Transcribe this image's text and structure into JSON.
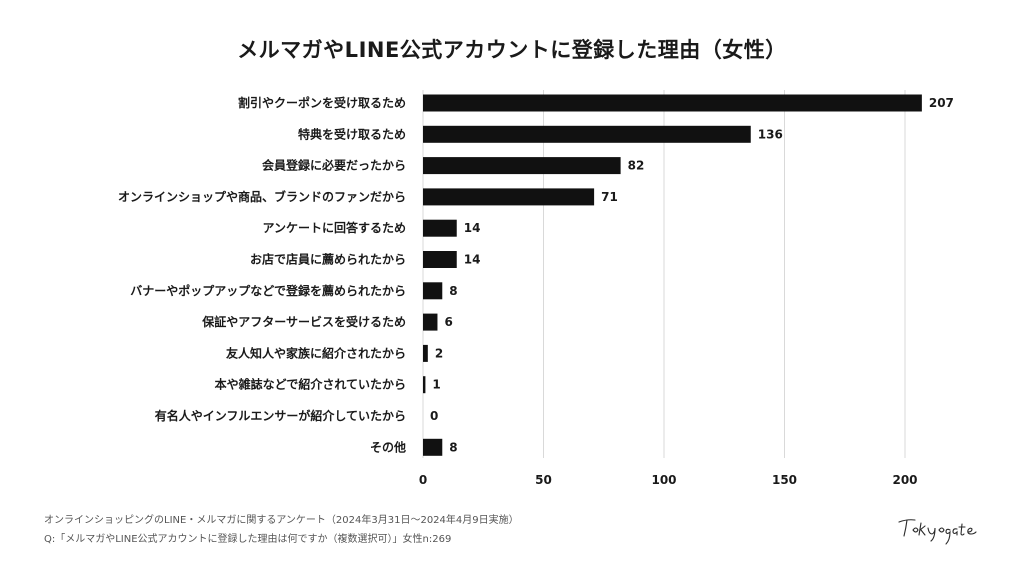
{
  "title": "メルマガやLINE公式アカウントに登録した理由（女性）",
  "footer": {
    "line1": "オンラインショッピングのLINE・メルマガに関するアンケート（2024年3月31日〜2024年4月9日実施）",
    "line2": "Q:「メルマガやLINE公式アカウントに登録した理由は何ですか（複数選択可）」女性n:269"
  },
  "logo_text": "Tokyo gate",
  "colors": {
    "bar": "#111111",
    "grid": "#d9d9d9",
    "text": "#1a1a1a"
  },
  "chart_data": {
    "type": "bar",
    "orientation": "horizontal",
    "categories": [
      "割引やクーポンを受け取るため",
      "特典を受け取るため",
      "会員登録に必要だったから",
      "オンラインショップや商品、ブランドのファンだから",
      "アンケートに回答するため",
      "お店で店員に薦められたから",
      "バナーやポップアップなどで登録を薦められたから",
      "保証やアフターサービスを受けるため",
      "友人知人や家族に紹介されたから",
      "本や雑誌などで紹介されていたから",
      "有名人やインフルエンサーが紹介していたから",
      "その他"
    ],
    "values": [
      207,
      136,
      82,
      71,
      14,
      14,
      8,
      6,
      2,
      1,
      0,
      8
    ],
    "xlim": [
      0,
      200
    ],
    "xticks": [
      0,
      50,
      100,
      150,
      200
    ],
    "grid": true,
    "data_labels": true
  }
}
